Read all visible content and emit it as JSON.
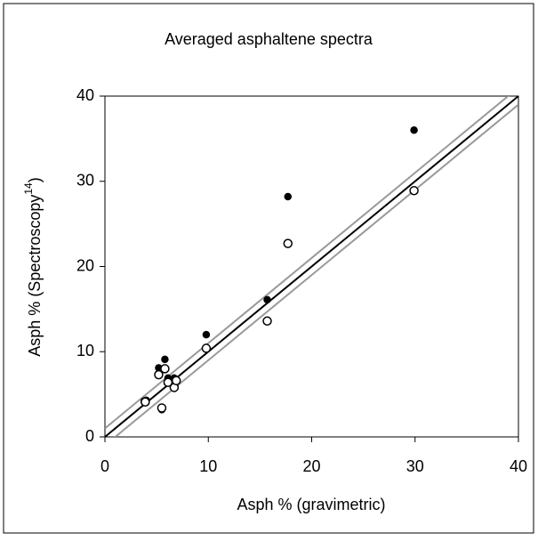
{
  "chart_data": {
    "type": "scatter",
    "title": "Averaged asphaltene spectra",
    "xlabel": "Asph % (gravimetric)",
    "ylabel": {
      "text": "Asph % (Spectroscopy",
      "sup": "14",
      "after": ")"
    },
    "xlim": [
      0,
      40
    ],
    "ylim": [
      0,
      40
    ],
    "xticks": [
      0,
      10,
      20,
      30,
      40
    ],
    "yticks": [
      0,
      10,
      20,
      30,
      40
    ],
    "series": [
      {
        "marker": "filled",
        "color": "#000000",
        "x": [
          29.9,
          17.7,
          15.7,
          9.8,
          5.8,
          5.2,
          6.1,
          6.7,
          3.8,
          4.0,
          5.5,
          6.8
        ],
        "y": [
          36.0,
          28.2,
          16.1,
          12.0,
          9.1,
          8.1,
          6.9,
          6.9,
          4.2,
          4.3,
          3.2,
          6.4
        ]
      },
      {
        "marker": "open",
        "color": "#000000",
        "x": [
          29.9,
          17.7,
          15.7,
          9.8,
          5.2,
          5.8,
          6.1,
          6.7,
          3.9,
          5.5,
          6.9
        ],
        "y": [
          28.9,
          22.7,
          13.6,
          10.4,
          7.3,
          8.0,
          6.4,
          5.8,
          4.1,
          3.4,
          6.6
        ]
      }
    ],
    "lines": [
      {
        "slope": 1,
        "intercept": 0,
        "color": "#000000"
      },
      {
        "slope": 1,
        "intercept": 1,
        "color": "#999999"
      },
      {
        "slope": 1,
        "intercept": -1,
        "color": "#999999"
      }
    ]
  }
}
